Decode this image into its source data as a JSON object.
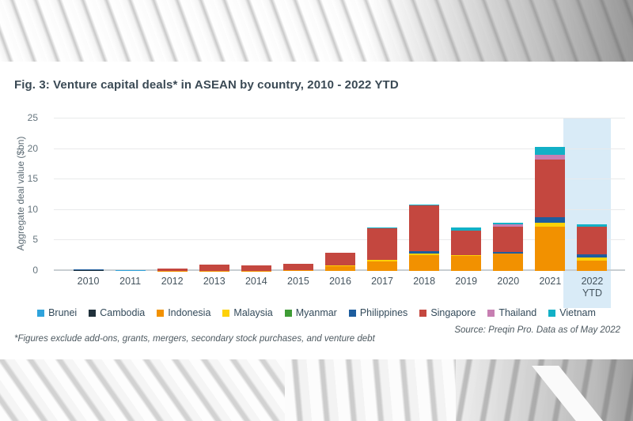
{
  "figure": {
    "title": "Fig. 3: Venture capital deals* in ASEAN by country, 2010 - 2022 YTD",
    "footnote": "*Figures exclude add-ons, grants, mergers, secondary stock purchases, and venture debt",
    "source": "Source: Preqin Pro. Data as of May 2022"
  },
  "chart_data": {
    "type": "bar",
    "stacked": true,
    "title": "Fig. 3: Venture capital deals* in ASEAN by country, 2010 - 2022 YTD",
    "ylabel": "Aggregate deal value ($bn)",
    "ylim": [
      0,
      25
    ],
    "yticks": [
      0,
      5,
      10,
      15,
      20,
      25
    ],
    "grid": true,
    "legend_position": "bottom",
    "highlight_category": "2022 YTD",
    "highlight_color": "#d9ebf7",
    "categories": [
      "2010",
      "2011",
      "2012",
      "2013",
      "2014",
      "2015",
      "2016",
      "2017",
      "2018",
      "2019",
      "2020",
      "2021",
      "2022 YTD"
    ],
    "series": [
      {
        "name": "Brunei",
        "color": "#2fa3dc",
        "values": [
          0,
          0.1,
          0,
          0,
          0,
          0,
          0,
          0,
          0,
          0,
          0,
          0,
          0
        ]
      },
      {
        "name": "Cambodia",
        "color": "#20313b",
        "values": [
          0.15,
          0,
          0,
          0,
          0,
          0,
          0,
          0,
          0,
          0,
          0,
          0,
          0
        ]
      },
      {
        "name": "Indonesia",
        "color": "#f29100",
        "values": [
          0,
          0,
          0.05,
          0.05,
          0.05,
          0.15,
          0.8,
          1.6,
          2.6,
          2.4,
          2.9,
          7.3,
          1.7
        ]
      },
      {
        "name": "Malaysia",
        "color": "#fdd108",
        "values": [
          0,
          0,
          0,
          0,
          0,
          0,
          0.1,
          0.25,
          0.3,
          0.15,
          0,
          0.6,
          0.5
        ]
      },
      {
        "name": "Myanmar",
        "color": "#3f9c35",
        "values": [
          0,
          0,
          0,
          0,
          0,
          0,
          0,
          0,
          0,
          0,
          0,
          0,
          0
        ]
      },
      {
        "name": "Philippines",
        "color": "#1e5d9e",
        "values": [
          0.05,
          0.05,
          0,
          0,
          0,
          0,
          0,
          0,
          0.4,
          0.1,
          0.15,
          0.9,
          0.5
        ]
      },
      {
        "name": "Singapore",
        "color": "#c4473f",
        "values": [
          0,
          0,
          0.3,
          1.0,
          0.8,
          1.0,
          2.1,
          5.1,
          7.5,
          3.9,
          4.2,
          9.5,
          4.6
        ]
      },
      {
        "name": "Thailand",
        "color": "#c77fb2",
        "values": [
          0,
          0,
          0,
          0.05,
          0,
          0,
          0,
          0,
          0,
          0,
          0.35,
          0.8,
          0
        ]
      },
      {
        "name": "Vietnam",
        "color": "#12b0c6",
        "values": [
          0,
          0,
          0,
          0,
          0,
          0,
          0,
          0.15,
          0.1,
          0.6,
          0.25,
          1.2,
          0.3
        ]
      }
    ],
    "totals": [
      0.2,
      0.15,
      0.35,
      1.1,
      0.85,
      1.15,
      3.0,
      7.1,
      10.9,
      7.15,
      7.85,
      20.3,
      7.6
    ]
  }
}
